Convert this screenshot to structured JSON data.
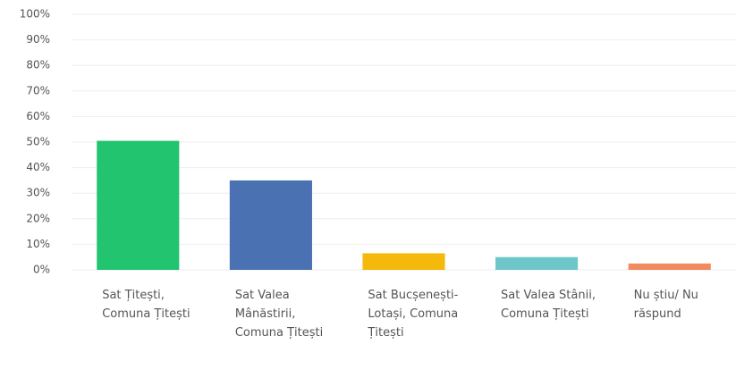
{
  "chart_data": {
    "type": "bar",
    "categories": [
      "Sat Țitești, Comuna Țitești",
      "Sat Valea Mânăstirii, Comuna Țitești",
      "Sat Bucșenești-Lotași, Comuna Țitești",
      "Sat Valea Stânii, Comuna Țitești",
      "Nu știu/ Nu răspund"
    ],
    "values": [
      50.5,
      35,
      6.5,
      5,
      2.5
    ],
    "colors": [
      "#22c46f",
      "#4a72b2",
      "#f5b90c",
      "#6ec6c8",
      "#f28a5f"
    ],
    "ylim": [
      0,
      100
    ],
    "yticks": [
      {
        "value": 0,
        "label": "0%"
      },
      {
        "value": 10,
        "label": "10%"
      },
      {
        "value": 20,
        "label": "20%"
      },
      {
        "value": 30,
        "label": "30%"
      },
      {
        "value": 40,
        "label": "40%"
      },
      {
        "value": 50,
        "label": "50%"
      },
      {
        "value": 60,
        "label": "60%"
      },
      {
        "value": 70,
        "label": "70%"
      },
      {
        "value": 80,
        "label": "80%"
      },
      {
        "value": 90,
        "label": "90%"
      },
      {
        "value": 100,
        "label": "100%"
      }
    ],
    "grid": true
  }
}
